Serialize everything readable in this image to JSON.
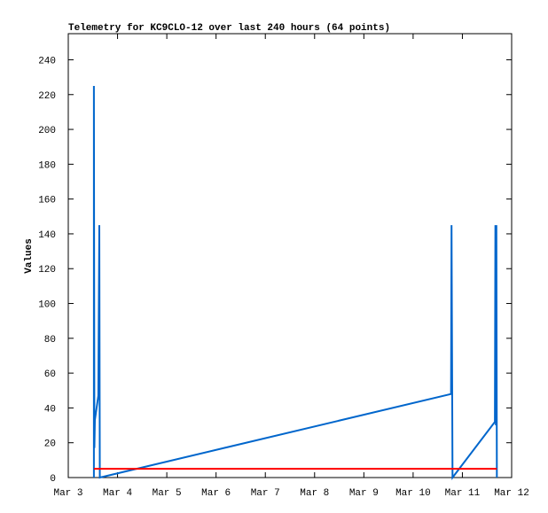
{
  "chart_data": {
    "type": "line",
    "title": "Telemetry for KC9CLO-12 over last 240 hours (64 points)",
    "y_label": "Values",
    "xlim": [
      3,
      12
    ],
    "xticks": [
      {
        "value": 3,
        "label": "Mar 3"
      },
      {
        "value": 4,
        "label": "Mar 4"
      },
      {
        "value": 5,
        "label": "Mar 5"
      },
      {
        "value": 6,
        "label": "Mar 6"
      },
      {
        "value": 7,
        "label": "Mar 7"
      },
      {
        "value": 8,
        "label": "Mar 8"
      },
      {
        "value": 9,
        "label": "Mar 9"
      },
      {
        "value": 10,
        "label": "Mar 10"
      },
      {
        "value": 11,
        "label": "Mar 11"
      },
      {
        "value": 12,
        "label": "Mar 12"
      }
    ],
    "ylim": [
      0,
      255
    ],
    "yticks": [
      0,
      20,
      40,
      60,
      80,
      100,
      120,
      140,
      160,
      180,
      200,
      220,
      240
    ],
    "series": [
      {
        "color": "#0066cc",
        "x": [
          3.52,
          3.52,
          3.53,
          3.54,
          3.6,
          3.61,
          3.62,
          3.63,
          3.64,
          10.77,
          10.78,
          10.79,
          10.8,
          11.66,
          11.67,
          11.68,
          11.69,
          11.7
        ],
        "values": [
          0,
          225,
          17,
          33,
          45,
          47,
          97,
          145,
          0,
          48,
          145,
          72,
          0,
          32,
          145,
          30,
          145,
          0
        ]
      },
      {
        "color": "#ff0000",
        "x": [
          3.52,
          11.7
        ],
        "values": [
          5,
          5
        ]
      }
    ]
  }
}
